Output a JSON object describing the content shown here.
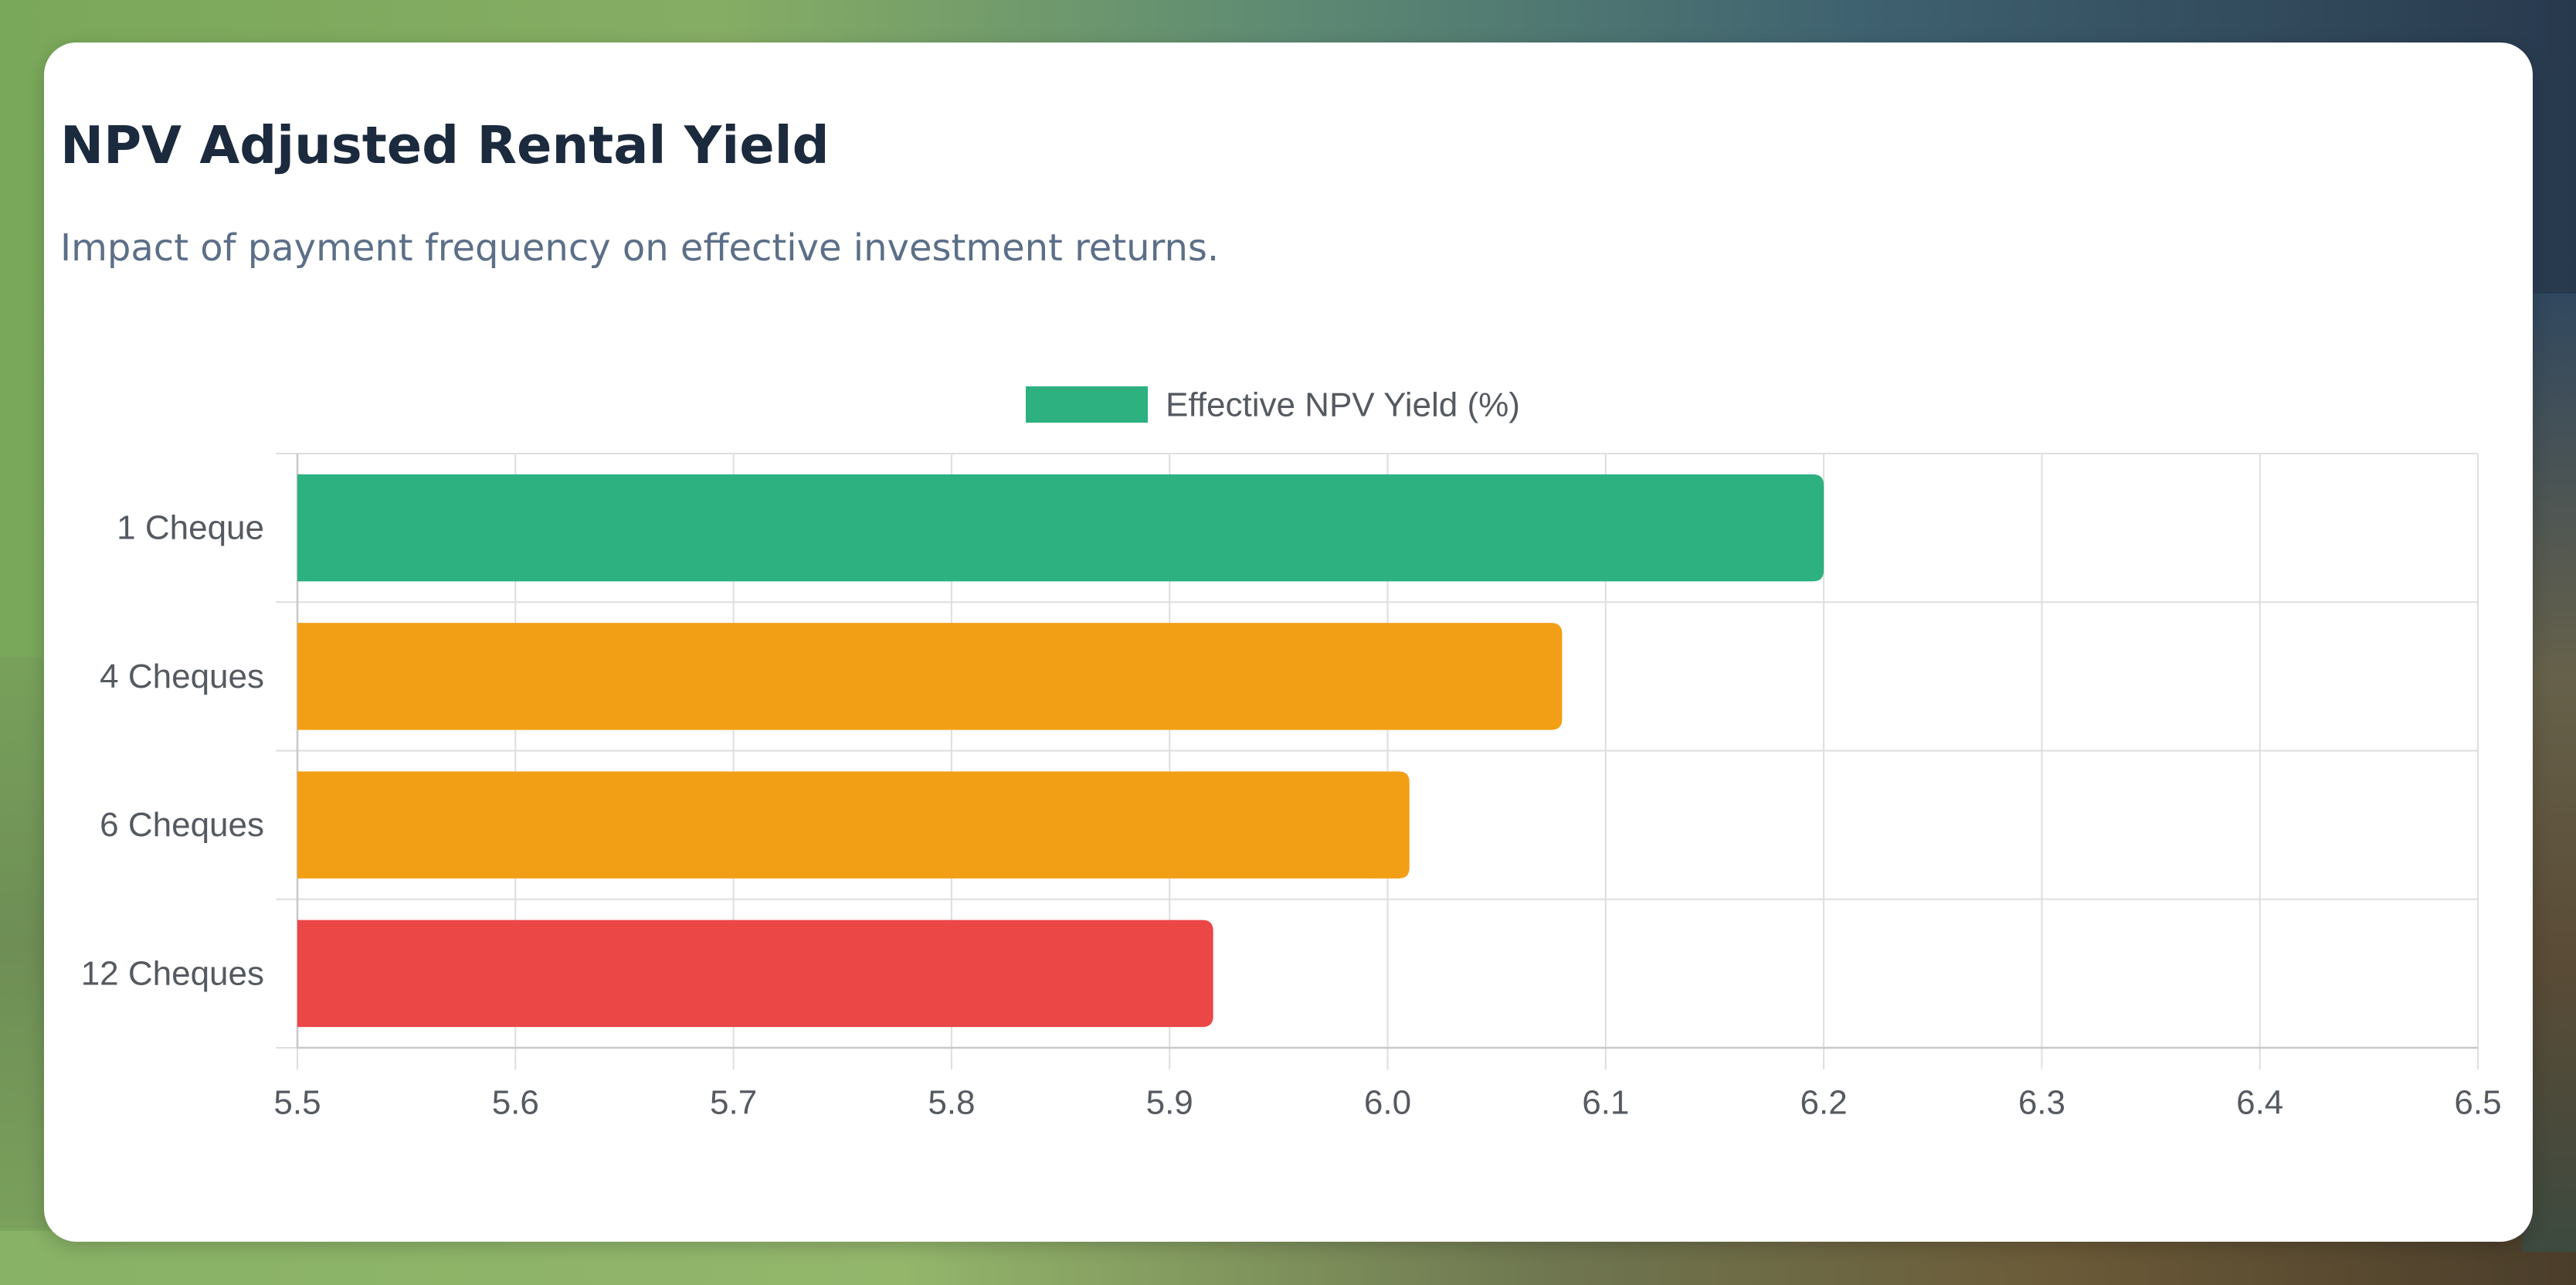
{
  "header": {
    "title": "NPV Adjusted Rental Yield",
    "subtitle": "Impact of payment frequency on effective investment returns."
  },
  "chart_data": {
    "type": "bar",
    "orientation": "horizontal",
    "categories": [
      "1 Cheque",
      "4 Cheques",
      "6 Cheques",
      "12 Cheques"
    ],
    "series": [
      {
        "name": "Effective NPV Yield (%)",
        "values": [
          6.2,
          6.08,
          6.01,
          5.92
        ]
      }
    ],
    "bar_colors": [
      "#2db180",
      "#f39f16",
      "#f39f16",
      "#eb4747"
    ],
    "legend_color": "#2db180",
    "xlim": [
      5.5,
      6.5
    ],
    "x_ticks": [
      "5.5",
      "5.6",
      "5.7",
      "5.8",
      "5.9",
      "6.0",
      "6.1",
      "6.2",
      "6.3",
      "6.4",
      "6.5"
    ],
    "xlabel": "",
    "ylabel": "",
    "grid": true,
    "legend_position": "top-center"
  }
}
